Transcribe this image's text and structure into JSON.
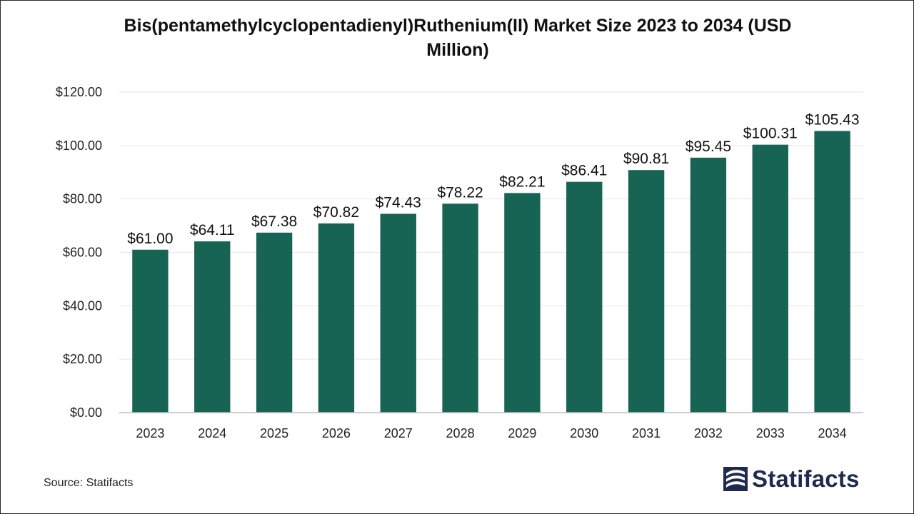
{
  "chart_data": {
    "type": "bar",
    "title": "Bis(pentamethylcyclopentadienyl)Ruthenium(II) Market Size 2023 to 2034 (USD Million)",
    "categories": [
      "2023",
      "2024",
      "2025",
      "2026",
      "2027",
      "2028",
      "2029",
      "2030",
      "2031",
      "2032",
      "2033",
      "2034"
    ],
    "values": [
      61.0,
      64.11,
      67.38,
      70.82,
      74.43,
      78.22,
      82.21,
      86.41,
      90.81,
      95.45,
      100.31,
      105.43
    ],
    "data_labels": [
      "$61.00",
      "$64.11",
      "$67.38",
      "$70.82",
      "$74.43",
      "$78.22",
      "$82.21",
      "$86.41",
      "$90.81",
      "$95.45",
      "$100.31",
      "$105.43"
    ],
    "yticks": [
      0,
      20,
      40,
      60,
      80,
      100,
      120
    ],
    "ytick_labels": [
      "$0.00",
      "$20.00",
      "$40.00",
      "$60.00",
      "$80.00",
      "$100.00",
      "$120.00"
    ],
    "ylim": [
      0,
      120
    ],
    "xlabel": "",
    "ylabel": "",
    "grid": true,
    "legend": "none",
    "bar_color": "#176354"
  },
  "source": "Source: Statifacts",
  "logo": {
    "text": "Statifacts",
    "icon": "statifacts-logo-icon",
    "color": "#1e2b4f"
  }
}
